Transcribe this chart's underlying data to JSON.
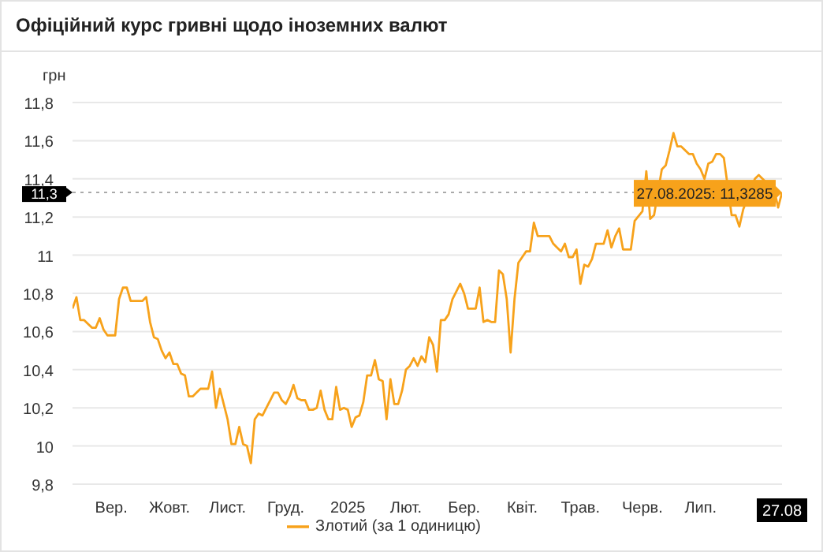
{
  "chart_data": {
    "type": "line",
    "title": "Офіційний курс гривні щодо іноземних валют",
    "ylabel": "грн",
    "categories": [
      null,
      null,
      null,
      null,
      null,
      null,
      null,
      null,
      null,
      null,
      "Вер.",
      null,
      null,
      null,
      null,
      null,
      null,
      null,
      null,
      null,
      null,
      null,
      null,
      null,
      null,
      "Жовт.",
      null,
      null,
      null,
      null,
      null,
      null,
      null,
      null,
      null,
      null,
      null,
      null,
      null,
      null,
      "Лист.",
      null,
      null,
      null,
      null,
      null,
      null,
      null,
      null,
      null,
      null,
      null,
      null,
      null,
      null,
      "Груд.",
      null,
      null,
      null,
      null,
      null,
      null,
      null,
      null,
      null,
      null,
      null,
      null,
      null,
      null,
      null,
      "2025",
      null,
      null,
      null,
      null,
      null,
      null,
      null,
      null,
      null,
      null,
      null,
      null,
      null,
      null,
      "Лют.",
      null,
      null,
      null,
      null,
      null,
      null,
      null,
      null,
      null,
      null,
      null,
      null,
      null,
      null,
      "Бер.",
      null,
      null,
      null,
      null,
      null,
      null,
      null,
      null,
      null,
      null,
      null,
      null,
      null,
      null,
      "Квіт.",
      null,
      null,
      null,
      null,
      null,
      null,
      null,
      null,
      null,
      null,
      null,
      null,
      null,
      null,
      "Трав.",
      null,
      null,
      null,
      null,
      null,
      null,
      null,
      null,
      null,
      null,
      null,
      null,
      null,
      null,
      null,
      "Черв.",
      null,
      null,
      null,
      null,
      null,
      null,
      null,
      null,
      null,
      null,
      null,
      null,
      null,
      null,
      "Лип.",
      null,
      null,
      null,
      null,
      null,
      null,
      null,
      null,
      null,
      null,
      null,
      null,
      null,
      null,
      null,
      null,
      null,
      null,
      null,
      null,
      "27.08"
    ],
    "series": [
      {
        "name": "Злотий (за 1 одиницю)",
        "color": "#f7a21b",
        "values": [
          10.72,
          10.78,
          10.66,
          10.66,
          10.64,
          10.62,
          10.62,
          10.67,
          10.61,
          10.58,
          10.58,
          10.58,
          10.77,
          10.83,
          10.83,
          10.76,
          10.76,
          10.76,
          10.76,
          10.78,
          10.65,
          10.57,
          10.56,
          10.5,
          10.46,
          10.49,
          10.43,
          10.43,
          10.38,
          10.37,
          10.26,
          10.26,
          10.28,
          10.3,
          10.3,
          10.3,
          10.39,
          10.2,
          10.3,
          10.22,
          10.14,
          10.01,
          10.01,
          10.1,
          10.01,
          10.0,
          9.91,
          10.14,
          10.17,
          10.16,
          10.2,
          10.24,
          10.28,
          10.28,
          10.24,
          10.22,
          10.26,
          10.32,
          10.25,
          10.24,
          10.24,
          10.19,
          10.19,
          10.2,
          10.29,
          10.19,
          10.14,
          10.14,
          10.31,
          10.19,
          10.2,
          10.19,
          10.1,
          10.15,
          10.16,
          10.23,
          10.37,
          10.37,
          10.45,
          10.35,
          10.34,
          10.14,
          10.35,
          10.22,
          10.22,
          10.29,
          10.4,
          10.42,
          10.46,
          10.42,
          10.47,
          10.44,
          10.57,
          10.53,
          10.39,
          10.66,
          10.66,
          10.69,
          10.77,
          10.81,
          10.85,
          10.8,
          10.72,
          10.72,
          10.72,
          10.83,
          10.65,
          10.66,
          10.65,
          10.65,
          10.92,
          10.9,
          10.77,
          10.49,
          10.77,
          10.96,
          10.99,
          11.02,
          11.02,
          11.17,
          11.1,
          11.1,
          11.1,
          11.1,
          11.06,
          11.04,
          11.02,
          11.06,
          10.99,
          10.99,
          11.03,
          10.85,
          10.95,
          10.94,
          10.98,
          11.06,
          11.06,
          11.06,
          11.13,
          11.04,
          11.1,
          11.14,
          11.03,
          11.03,
          11.03,
          11.18,
          null,
          11.23,
          11.44,
          11.19,
          11.21,
          null,
          11.45,
          11.47,
          11.55,
          11.64,
          11.57,
          11.57,
          11.55,
          11.53,
          11.53,
          11.48,
          11.45,
          11.4,
          11.48,
          11.49,
          11.53,
          11.53,
          11.51,
          null,
          11.21,
          11.21,
          11.15,
          11.24,
          null,
          null,
          11.4,
          11.42,
          null,
          null,
          null,
          11.34,
          11.25,
          11.3285
        ]
      }
    ],
    "ylim": [
      9.8,
      11.8
    ],
    "yticks": [
      {
        "value": 9.8,
        "label": "9,8"
      },
      10,
      {
        "value": 10.2,
        "label": "10,2"
      },
      {
        "value": 10.4,
        "label": "10,4"
      },
      {
        "value": 10.6,
        "label": "10,6"
      },
      {
        "value": 10.8,
        "label": "10,8"
      },
      11,
      {
        "value": 11.2,
        "label": "11,2"
      },
      {
        "value": 11.4,
        "label": "11,4"
      },
      {
        "value": 11.6,
        "label": "11,6"
      },
      {
        "value": 11.8,
        "label": "11,8"
      }
    ],
    "ref_lines": [
      {
        "axis": "y",
        "value": 11.3285,
        "label": "11,3",
        "line_style": "dotted"
      }
    ],
    "annotations": [
      {
        "text": "27.08.2025: 11,3285",
        "x": "27.08",
        "y": 11.3285
      }
    ],
    "grid": "y",
    "legend": "bottom",
    "marker": "none",
    "line_style": "solid"
  }
}
